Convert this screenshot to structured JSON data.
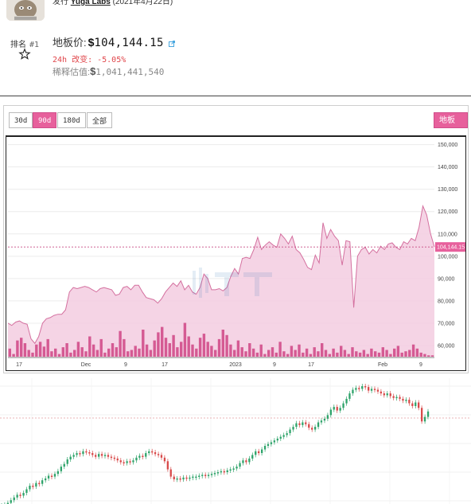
{
  "header": {
    "issuer_prefix": "发行",
    "issuer_name": "Yuga Labs",
    "issuer_date": "(2021年4月22日)"
  },
  "stats": {
    "rank_label": "排名",
    "rank_value": "#1",
    "floor_label": "地板价:",
    "floor_currency": "$",
    "floor_value": "104,144.15",
    "change_label": "24h 改变:",
    "change_value": "-5.05%",
    "diluted_label": "稀释估值:",
    "diluted_currency": "$",
    "diluted_value": "1,041,441,540"
  },
  "chart_controls": {
    "range_30d": "30d",
    "range_90d": "90d",
    "range_180d": "180d",
    "range_all": "全部",
    "metric": "地板价",
    "active_range": "90d"
  },
  "colors": {
    "accent": "#e7609c",
    "area_fill": "#f3cde0",
    "line": "#d4709f",
    "volume": "#d14d8a",
    "negative": "#e0454a",
    "candle_up": "#2ea36a",
    "candle_down": "#d84a4a"
  },
  "chart_data": {
    "type": "area",
    "title": "",
    "x_ticks": [
      "17",
      "Dec",
      "9",
      "17",
      "2023",
      "9",
      "17",
      "Feb",
      "9"
    ],
    "y_ticks": [
      "150,000",
      "140,000",
      "130,000",
      "120,000",
      "110,000",
      "100,000",
      "90,000",
      "80,000",
      "70,000",
      "60,000"
    ],
    "ylim": [
      55000,
      152000
    ],
    "current_value_label": "104,144.15",
    "current_value": 104144.15,
    "series": [
      {
        "values": [
          70000,
          69000,
          70500,
          71000,
          70000,
          69500,
          63000,
          61000,
          64000,
          70000,
          72000,
          72500,
          73500,
          74000,
          74000,
          76000,
          84000,
          86000,
          85500,
          86000,
          86500,
          86000,
          85000,
          84000,
          85500,
          86000,
          85500,
          85000,
          82500,
          83000,
          86000,
          86500,
          85000,
          87000,
          87000,
          84000,
          81500,
          81000,
          80500,
          79000,
          81000,
          84000,
          86000,
          88000,
          86500,
          89000,
          85000,
          87000,
          84000,
          83000,
          86000,
          92000,
          90000,
          85000,
          85000,
          85500,
          84500,
          86000,
          91000,
          94500,
          92000,
          99000,
          99500,
          99000,
          103000,
          108500,
          103000,
          105000,
          106500,
          105000,
          104000,
          110000,
          108000,
          105500,
          109000,
          103000,
          101500,
          98500,
          95000,
          94000,
          100500,
          97000,
          115000,
          108000,
          112000,
          109000,
          107000,
          96000,
          107000,
          106500,
          77000,
          100000,
          103000,
          104000,
          101000,
          103000,
          101500,
          104500,
          103000,
          105500,
          106000,
          104000,
          103000,
          106500,
          105500,
          108000,
          107000,
          113000,
          122500,
          118500,
          110000,
          104144
        ]
      }
    ],
    "volume_series": {
      "values": [
        12,
        4,
        24,
        28,
        20,
        10,
        6,
        18,
        22,
        15,
        26,
        8,
        12,
        4,
        14,
        20,
        6,
        10,
        22,
        14,
        8,
        30,
        18,
        10,
        26,
        6,
        12,
        20,
        14,
        38,
        26,
        8,
        10,
        16,
        12,
        40,
        18,
        10,
        24,
        36,
        44,
        28,
        20,
        32,
        14,
        22,
        50,
        30,
        18,
        12,
        28,
        34,
        22,
        16,
        10,
        26,
        40,
        32,
        18,
        10,
        24,
        14,
        8,
        20,
        12,
        6,
        18,
        4,
        10,
        14,
        6,
        22,
        8,
        4,
        16,
        10,
        18,
        6,
        12,
        4,
        14,
        8,
        20,
        10,
        4,
        12,
        6,
        16,
        10,
        4,
        14,
        8,
        6,
        10,
        4,
        12,
        8,
        6,
        14,
        10,
        4,
        12,
        16,
        6,
        8,
        10,
        18,
        12,
        6,
        4,
        2,
        2
      ]
    },
    "candles": {
      "values": [
        12,
        13,
        15,
        18,
        21,
        24,
        23,
        26,
        30,
        34,
        33,
        37,
        36,
        40,
        42,
        45,
        44,
        47,
        50,
        55,
        58,
        63,
        66,
        68,
        70,
        69,
        72,
        71,
        70,
        68,
        66,
        69,
        67,
        68,
        66,
        65,
        64,
        62,
        60,
        59,
        61,
        60,
        62,
        65,
        67,
        66,
        70,
        72,
        71,
        69,
        68,
        65,
        61,
        52,
        44,
        41,
        42,
        41,
        43,
        42,
        43,
        44,
        44,
        45,
        46,
        45,
        46,
        47,
        48,
        49,
        50,
        49,
        51,
        52,
        53,
        55,
        59,
        62,
        60,
        64,
        68,
        72,
        70,
        74,
        78,
        80,
        82,
        84,
        86,
        88,
        90,
        92,
        96,
        99,
        103,
        101,
        104,
        102,
        98,
        96,
        99,
        104,
        106,
        108,
        112,
        118,
        121,
        117,
        120,
        125,
        130,
        136,
        140,
        142,
        141,
        144,
        143,
        139,
        141,
        140,
        138,
        136,
        134,
        136,
        133,
        131,
        132,
        130,
        128,
        129,
        125,
        122,
        126,
        120,
        105,
        110,
        116
      ]
    }
  }
}
